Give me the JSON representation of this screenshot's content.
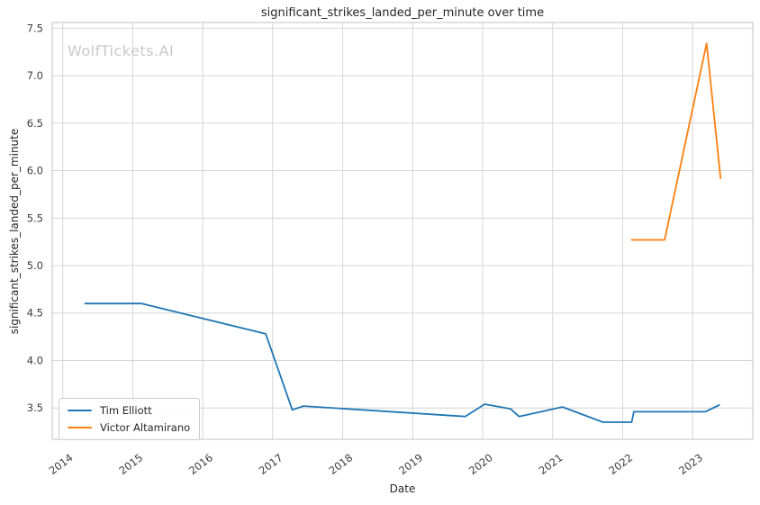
{
  "watermark": "WolfTickets.AI",
  "colors": {
    "background": "#ffffff",
    "grid": "#d6d6d6",
    "spine": "#cccccc",
    "text": "#262626",
    "tick": "#3b3b3b",
    "watermark": "#c9c9c9"
  },
  "chart_data": {
    "type": "line",
    "title": "significant_strikes_landed_per_minute over time",
    "xlabel": "Date",
    "ylabel": "significant_strikes_landed_per_minute",
    "grid": true,
    "legend_position": "lower left",
    "xlim": [
      2013.85,
      2023.86
    ],
    "ylim": [
      3.17,
      7.56
    ],
    "x_ticks": [
      2014,
      2015,
      2016,
      2017,
      2018,
      2019,
      2020,
      2021,
      2022,
      2023
    ],
    "y_ticks": [
      3.5,
      4.0,
      4.5,
      5.0,
      5.5,
      6.0,
      6.5,
      7.0,
      7.5
    ],
    "series": [
      {
        "name": "Tim Elliott",
        "color": "#1f77b4",
        "points": [
          [
            2014.32,
            4.6
          ],
          [
            2015.13,
            4.6
          ],
          [
            2016.9,
            4.28
          ],
          [
            2017.28,
            3.48
          ],
          [
            2017.44,
            3.52
          ],
          [
            2019.75,
            3.41
          ],
          [
            2020.03,
            3.54
          ],
          [
            2020.4,
            3.49
          ],
          [
            2020.52,
            3.41
          ],
          [
            2021.14,
            3.51
          ],
          [
            2021.72,
            3.35
          ],
          [
            2022.13,
            3.35
          ],
          [
            2022.16,
            3.46
          ],
          [
            2023.18,
            3.46
          ],
          [
            2023.38,
            3.53
          ]
        ]
      },
      {
        "name": "Victor Altamirano",
        "color": "#ff7f0e",
        "points": [
          [
            2022.13,
            5.27
          ],
          [
            2022.6,
            5.27
          ],
          [
            2023.2,
            7.34
          ],
          [
            2023.4,
            5.92
          ]
        ]
      }
    ]
  }
}
